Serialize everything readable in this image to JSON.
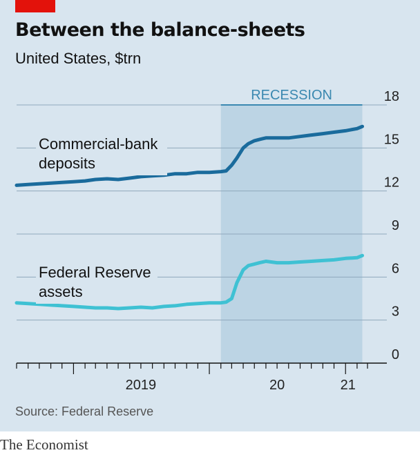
{
  "header": {
    "title": "Between the balance-sheets",
    "subtitle": "United States, $trn"
  },
  "source": "Source: Federal Reserve",
  "brand": "The Economist",
  "colors": {
    "background": "#d8e5ef",
    "recession": "#bcd4e4",
    "bank_line": "#1a6b9c",
    "fed_line": "#3fc1d3",
    "brand_red": "#e3120b"
  },
  "chart_data": {
    "type": "line",
    "title": "Between the balance-sheets",
    "subtitle": "United States, $trn",
    "ylim": [
      0,
      18
    ],
    "y_ticks": [
      "0",
      "3",
      "6",
      "9",
      "12",
      "15",
      "18"
    ],
    "y_axis_side": "right",
    "grid": true,
    "x_range": [
      "2018-08-01",
      "2021-03-01"
    ],
    "x_tick_labels": [
      "2019",
      "20",
      "21"
    ],
    "shaded_region": {
      "label": "RECESSION",
      "start": "2020-02-01",
      "end": "2021-02-15"
    },
    "series": [
      {
        "name": "Commercial-bank deposits",
        "label_lines": [
          "Commercial-bank",
          "deposits"
        ],
        "x": [
          "2018-08-01",
          "2018-09-01",
          "2018-10-01",
          "2018-11-01",
          "2018-12-01",
          "2019-01-01",
          "2019-02-01",
          "2019-03-01",
          "2019-04-01",
          "2019-05-01",
          "2019-06-01",
          "2019-07-01",
          "2019-08-01",
          "2019-09-01",
          "2019-10-01",
          "2019-11-01",
          "2019-12-01",
          "2020-01-01",
          "2020-02-01",
          "2020-02-15",
          "2020-03-01",
          "2020-03-15",
          "2020-04-01",
          "2020-04-15",
          "2020-05-01",
          "2020-05-15",
          "2020-06-01",
          "2020-07-01",
          "2020-08-01",
          "2020-09-01",
          "2020-10-01",
          "2020-11-01",
          "2020-12-01",
          "2021-01-01",
          "2021-02-01",
          "2021-02-15"
        ],
        "values": [
          12.4,
          12.45,
          12.5,
          12.55,
          12.6,
          12.65,
          12.7,
          12.8,
          12.85,
          12.8,
          12.9,
          13.0,
          13.05,
          13.1,
          13.2,
          13.2,
          13.3,
          13.3,
          13.35,
          13.4,
          13.8,
          14.3,
          15.0,
          15.3,
          15.5,
          15.6,
          15.7,
          15.7,
          15.7,
          15.8,
          15.9,
          16.0,
          16.1,
          16.2,
          16.35,
          16.5
        ]
      },
      {
        "name": "Federal Reserve assets",
        "label_lines": [
          "Federal Reserve",
          "assets"
        ],
        "x": [
          "2018-08-01",
          "2018-09-01",
          "2018-10-01",
          "2018-11-01",
          "2018-12-01",
          "2019-01-01",
          "2019-02-01",
          "2019-03-01",
          "2019-04-01",
          "2019-05-01",
          "2019-06-01",
          "2019-07-01",
          "2019-08-01",
          "2019-09-01",
          "2019-10-01",
          "2019-11-01",
          "2019-12-01",
          "2020-01-01",
          "2020-02-01",
          "2020-02-15",
          "2020-03-01",
          "2020-03-15",
          "2020-04-01",
          "2020-04-15",
          "2020-05-01",
          "2020-05-15",
          "2020-06-01",
          "2020-07-01",
          "2020-08-01",
          "2020-09-01",
          "2020-10-01",
          "2020-11-01",
          "2020-12-01",
          "2021-01-01",
          "2021-02-01",
          "2021-02-15"
        ],
        "values": [
          4.2,
          4.15,
          4.1,
          4.05,
          4.0,
          3.95,
          3.9,
          3.85,
          3.85,
          3.8,
          3.85,
          3.9,
          3.85,
          3.95,
          4.0,
          4.1,
          4.15,
          4.2,
          4.2,
          4.25,
          4.5,
          5.6,
          6.5,
          6.8,
          6.9,
          7.0,
          7.1,
          7.0,
          7.0,
          7.05,
          7.1,
          7.15,
          7.2,
          7.3,
          7.35,
          7.5
        ]
      }
    ]
  }
}
